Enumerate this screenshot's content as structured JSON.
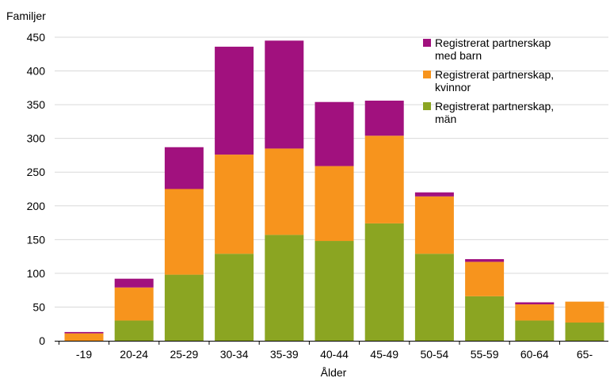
{
  "chart_data": {
    "type": "bar",
    "stacked": true,
    "ylabel": "Familjer",
    "xlabel": "Ålder",
    "ylim": [
      0,
      450
    ],
    "yticks": [
      0,
      50,
      100,
      150,
      200,
      250,
      300,
      350,
      400,
      450
    ],
    "grid": true,
    "legend_position": "top-right",
    "categories": [
      "-19",
      "20-24",
      "25-29",
      "30-34",
      "35-39",
      "40-44",
      "45-49",
      "50-54",
      "55-59",
      "60-64",
      "65-"
    ],
    "series": [
      {
        "name": "Registrerat partnerskap, män",
        "label_lines": [
          "Registrerat partnerskap,",
          "män"
        ],
        "color": "#8ba522",
        "values": [
          0,
          30,
          98,
          129,
          157,
          148,
          174,
          129,
          66,
          30,
          27
        ]
      },
      {
        "name": "Registrerat partnerskap, kvinnor",
        "label_lines": [
          "Registrerat partnerskap,",
          "kvinnor"
        ],
        "color": "#f7941d",
        "values": [
          11,
          49,
          127,
          147,
          128,
          111,
          130,
          85,
          51,
          24,
          31
        ]
      },
      {
        "name": "Registrerat partnerskap med barn",
        "label_lines": [
          "Registrerat partnerskap",
          "med barn"
        ],
        "color": "#a1117e",
        "values": [
          2,
          13,
          62,
          160,
          160,
          95,
          52,
          6,
          4,
          3,
          0
        ]
      }
    ]
  }
}
